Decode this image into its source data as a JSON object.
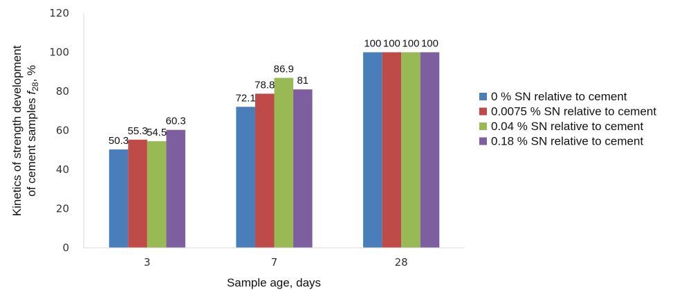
{
  "chart_data": {
    "type": "bar",
    "categories": [
      "3",
      "7",
      "28"
    ],
    "series": [
      {
        "name": "0 % SN relative to cement",
        "color": "#4A7EBB",
        "values": [
          50.3,
          72.1,
          100
        ],
        "labels": [
          "50.3",
          "72.1",
          "100"
        ]
      },
      {
        "name": "0.0075 % SN relative to cement",
        "color": "#BE4B48",
        "values": [
          55.3,
          78.8,
          100
        ],
        "labels": [
          "55.3",
          "78.8",
          "100"
        ]
      },
      {
        "name": "0.04 % SN relative to cement",
        "color": "#98B954",
        "values": [
          54.5,
          86.9,
          100
        ],
        "labels": [
          "54.5",
          "86.9",
          "100"
        ]
      },
      {
        "name": "0.18 % SN relative to cement",
        "color": "#7D5FA0",
        "values": [
          60.3,
          81,
          100
        ],
        "labels": [
          "60.3",
          "81",
          "100"
        ]
      }
    ],
    "xlabel": "Sample age, days",
    "ylabel_line1": "Kinetics of strength development",
    "ylabel_line2_prefix": "of cement  samples ",
    "ylabel_symbol": "f",
    "ylabel_subscript": "28",
    "ylabel_suffix": ", %",
    "ylim": [
      0,
      120
    ],
    "yticks": [
      "0",
      "20",
      "40",
      "60",
      "80",
      "100",
      "120"
    ],
    "grid": false,
    "legend_position": "right"
  }
}
